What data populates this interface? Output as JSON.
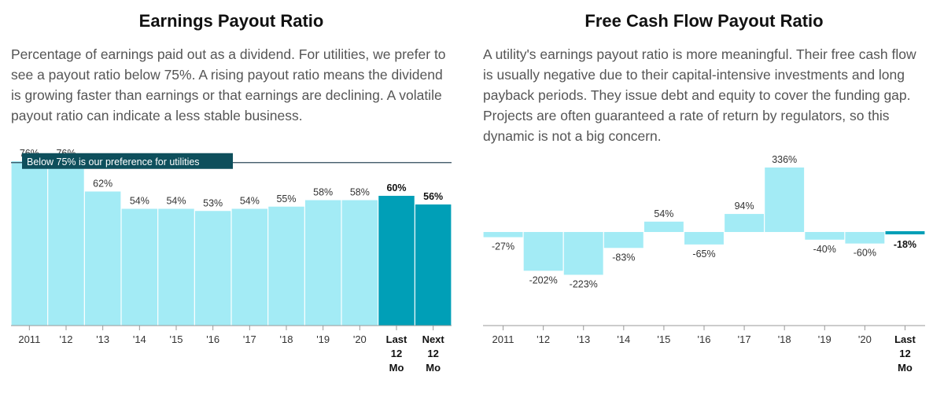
{
  "left": {
    "title": "Earnings Payout Ratio",
    "description": "Percentage of earnings paid out as a dividend. For utilities, we prefer to see a payout ratio below 75%. A rising payout ratio means the dividend is growing faster than earnings or that earnings are declining. A volatile payout ratio can indicate a less stable business.",
    "reference_label": "Below 75% is our preference for utilities"
  },
  "right": {
    "title": "Free Cash Flow Payout Ratio",
    "description": "A utility's earnings payout ratio is more meaningful. Their free cash flow is usually negative due to their capital-intensive investments and long payback periods. They issue debt and equity to cover the funding gap. Projects are often guaranteed a rate of return by regulators, so this dynamic is not a big concern."
  },
  "colors": {
    "light": "#a3ebf5",
    "dark": "#009fb7",
    "ref_line": "#2e4a5a",
    "ref_box": "#0e4f5c"
  },
  "chart_data": [
    {
      "type": "bar",
      "title": "Earnings Payout Ratio",
      "categories": [
        "2011",
        "'12",
        "'13",
        "'14",
        "'15",
        "'16",
        "'17",
        "'18",
        "'19",
        "'20",
        "Last\n12\nMo",
        "Next\n12\nMo"
      ],
      "values": [
        76,
        76,
        62,
        54,
        54,
        53,
        54,
        55,
        58,
        58,
        60,
        56
      ],
      "labels": [
        "76%",
        "76%",
        "62%",
        "54%",
        "54%",
        "53%",
        "54%",
        "55%",
        "58%",
        "58%",
        "60%",
        "56%"
      ],
      "highlight": [
        10,
        11
      ],
      "reference_value": 75,
      "ylim": [
        0,
        80
      ]
    },
    {
      "type": "bar",
      "title": "Free Cash Flow Payout Ratio",
      "categories": [
        "2011",
        "'12",
        "'13",
        "'14",
        "'15",
        "'16",
        "'17",
        "'18",
        "'19",
        "'20",
        "Last\n12\nMo"
      ],
      "values": [
        -27,
        -202,
        -223,
        -83,
        54,
        -65,
        94,
        336,
        -40,
        -60,
        -18
      ],
      "labels": [
        "-27%",
        "-202%",
        "-223%",
        "-83%",
        "54%",
        "-65%",
        "94%",
        "336%",
        "-40%",
        "-60%",
        "-18%"
      ],
      "highlight": [
        10
      ],
      "ylim": [
        -340,
        336
      ]
    }
  ]
}
